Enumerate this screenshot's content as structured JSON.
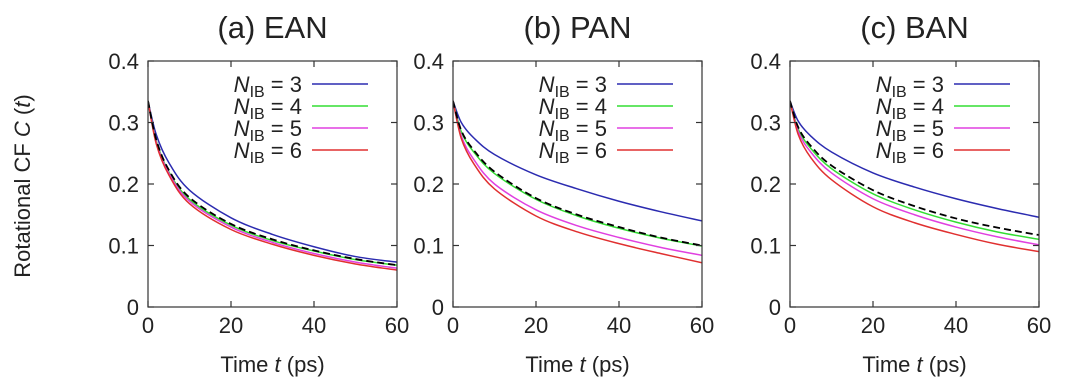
{
  "figure": {
    "ylabel_prefix": "Rotational CF ",
    "ylabel_symbol": "C",
    "ylabel_arg": "t",
    "xlabel_prefix": "Time ",
    "xlabel_symbol": "t",
    "xlabel_unit": " (ps)"
  },
  "chart_data": [
    {
      "type": "line",
      "title": "(a) EAN",
      "xlim": [
        0,
        60
      ],
      "ylim": [
        0,
        0.4
      ],
      "xticks": [
        0,
        20,
        40,
        60
      ],
      "yticks": [
        0,
        0.1,
        0.2,
        0.3,
        0.4
      ],
      "xtick_labels": [
        "0",
        "20",
        "40",
        "60"
      ],
      "ytick_labels": [
        "0",
        "0.1",
        "0.2",
        "0.3",
        "0.4"
      ],
      "grid": false,
      "legend_position": "top-right",
      "x": [
        0,
        2,
        5,
        10,
        20,
        30,
        40,
        50,
        60
      ],
      "series": [
        {
          "name": "N_IB = 3",
          "label_main": "N",
          "label_sub": "IB",
          "label_rest": " = 3",
          "color": "#2b2bb0",
          "dashed": false,
          "values": [
            0.335,
            0.28,
            0.235,
            0.19,
            0.145,
            0.118,
            0.098,
            0.082,
            0.073
          ]
        },
        {
          "name": "N_IB = 4",
          "label_main": "N",
          "label_sub": "IB",
          "label_rest": " = 4",
          "color": "#33dd33",
          "dashed": false,
          "values": [
            0.335,
            0.27,
            0.22,
            0.175,
            0.133,
            0.108,
            0.091,
            0.077,
            0.068
          ]
        },
        {
          "name": "N_IB = 5",
          "label_main": "N",
          "label_sub": "IB",
          "label_rest": " = 5",
          "color": "#e040e0",
          "dashed": false,
          "values": [
            0.335,
            0.268,
            0.218,
            0.172,
            0.13,
            0.105,
            0.087,
            0.073,
            0.063
          ]
        },
        {
          "name": "N_IB = 6",
          "label_main": "N",
          "label_sub": "IB",
          "label_rest": " = 6",
          "color": "#e03030",
          "dashed": false,
          "values": [
            0.335,
            0.265,
            0.215,
            0.168,
            0.126,
            0.102,
            0.084,
            0.07,
            0.06
          ]
        },
        {
          "name": "",
          "color": "#000000",
          "dashed": true,
          "values": [
            0.335,
            0.272,
            0.223,
            0.178,
            0.135,
            0.11,
            0.092,
            0.078,
            0.068
          ]
        }
      ]
    },
    {
      "type": "line",
      "title": "(b) PAN",
      "xlim": [
        0,
        60
      ],
      "ylim": [
        0,
        0.4
      ],
      "xticks": [
        0,
        20,
        40,
        60
      ],
      "yticks": [
        0,
        0.1,
        0.2,
        0.3,
        0.4
      ],
      "xtick_labels": [
        "0",
        "20",
        "40",
        "60"
      ],
      "ytick_labels": [
        "0",
        "0.1",
        "0.2",
        "0.3",
        "0.4"
      ],
      "grid": false,
      "legend_position": "top-right",
      "x": [
        0,
        2,
        5,
        10,
        20,
        30,
        40,
        50,
        60
      ],
      "series": [
        {
          "name": "N_IB = 3",
          "label_main": "N",
          "label_sub": "IB",
          "label_rest": " = 3",
          "color": "#2b2bb0",
          "dashed": false,
          "values": [
            0.335,
            0.3,
            0.275,
            0.248,
            0.215,
            0.192,
            0.172,
            0.155,
            0.14
          ]
        },
        {
          "name": "N_IB = 4",
          "label_main": "N",
          "label_sub": "IB",
          "label_rest": " = 4",
          "color": "#33dd33",
          "dashed": false,
          "values": [
            0.335,
            0.285,
            0.252,
            0.217,
            0.175,
            0.148,
            0.128,
            0.112,
            0.099
          ]
        },
        {
          "name": "N_IB = 5",
          "label_main": "N",
          "label_sub": "IB",
          "label_rest": " = 5",
          "color": "#e040e0",
          "dashed": false,
          "values": [
            0.335,
            0.278,
            0.24,
            0.2,
            0.158,
            0.132,
            0.113,
            0.097,
            0.084
          ]
        },
        {
          "name": "N_IB = 6",
          "label_main": "N",
          "label_sub": "IB",
          "label_rest": " = 6",
          "color": "#e03030",
          "dashed": false,
          "values": [
            0.335,
            0.274,
            0.233,
            0.192,
            0.148,
            0.122,
            0.103,
            0.087,
            0.072
          ]
        },
        {
          "name": "",
          "color": "#000000",
          "dashed": true,
          "values": [
            0.335,
            0.287,
            0.255,
            0.22,
            0.177,
            0.15,
            0.13,
            0.113,
            0.1
          ]
        }
      ]
    },
    {
      "type": "line",
      "title": "(c) BAN",
      "xlim": [
        0,
        60
      ],
      "ylim": [
        0,
        0.4
      ],
      "xticks": [
        0,
        20,
        40,
        60
      ],
      "yticks": [
        0,
        0.1,
        0.2,
        0.3,
        0.4
      ],
      "xtick_labels": [
        "0",
        "20",
        "40",
        "60"
      ],
      "ytick_labels": [
        "0",
        "0.1",
        "0.2",
        "0.3",
        "0.4"
      ],
      "grid": false,
      "legend_position": "top-right",
      "x": [
        0,
        2,
        5,
        10,
        20,
        30,
        40,
        50,
        60
      ],
      "series": [
        {
          "name": "N_IB = 3",
          "label_main": "N",
          "label_sub": "IB",
          "label_rest": " = 3",
          "color": "#2b2bb0",
          "dashed": false,
          "values": [
            0.335,
            0.302,
            0.278,
            0.252,
            0.218,
            0.195,
            0.176,
            0.16,
            0.146
          ]
        },
        {
          "name": "N_IB = 4",
          "label_main": "N",
          "label_sub": "IB",
          "label_rest": " = 4",
          "color": "#33dd33",
          "dashed": false,
          "values": [
            0.335,
            0.289,
            0.258,
            0.225,
            0.184,
            0.158,
            0.138,
            0.122,
            0.11
          ]
        },
        {
          "name": "N_IB = 5",
          "label_main": "N",
          "label_sub": "IB",
          "label_rest": " = 5",
          "color": "#e040e0",
          "dashed": false,
          "values": [
            0.335,
            0.285,
            0.252,
            0.218,
            0.176,
            0.15,
            0.13,
            0.114,
            0.101
          ]
        },
        {
          "name": "N_IB = 6",
          "label_main": "N",
          "label_sub": "IB",
          "label_rest": " = 6",
          "color": "#e03030",
          "dashed": false,
          "values": [
            0.335,
            0.28,
            0.243,
            0.207,
            0.163,
            0.137,
            0.118,
            0.102,
            0.09
          ]
        },
        {
          "name": "",
          "color": "#000000",
          "dashed": true,
          "values": [
            0.335,
            0.292,
            0.262,
            0.23,
            0.19,
            0.164,
            0.144,
            0.129,
            0.117
          ]
        }
      ]
    }
  ]
}
